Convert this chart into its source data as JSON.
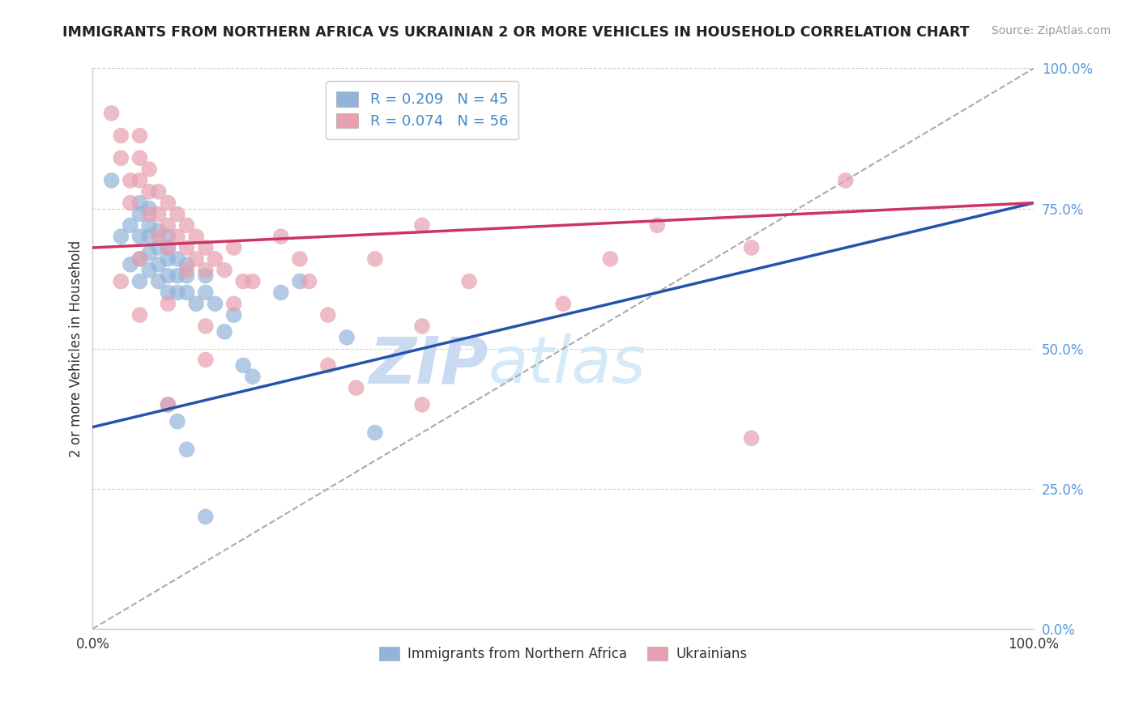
{
  "title": "IMMIGRANTS FROM NORTHERN AFRICA VS UKRAINIAN 2 OR MORE VEHICLES IN HOUSEHOLD CORRELATION CHART",
  "source": "Source: ZipAtlas.com",
  "ylabel": "2 or more Vehicles in Household",
  "ytick_labels": [
    "0.0%",
    "25.0%",
    "50.0%",
    "75.0%",
    "100.0%"
  ],
  "ytick_values": [
    0.0,
    0.25,
    0.5,
    0.75,
    1.0
  ],
  "xtick_labels": [
    "0.0%",
    "100.0%"
  ],
  "xtick_values": [
    0.0,
    1.0
  ],
  "xlim": [
    0.0,
    1.0
  ],
  "ylim": [
    0.0,
    1.0
  ],
  "legend_blue_R": "R = 0.209",
  "legend_blue_N": "N = 45",
  "legend_pink_R": "R = 0.074",
  "legend_pink_N": "N = 56",
  "legend_label_blue": "Immigrants from Northern Africa",
  "legend_label_pink": "Ukrainians",
  "blue_color": "#92b4d9",
  "pink_color": "#e8a0b0",
  "trendline_blue_color": "#2255aa",
  "trendline_pink_color": "#cc3366",
  "trendline_dashed_color": "#aaaaaa",
  "watermark_zip": "ZIP",
  "watermark_atlas": "atlas",
  "blue_x": [
    0.02,
    0.03,
    0.04,
    0.04,
    0.05,
    0.05,
    0.05,
    0.05,
    0.05,
    0.06,
    0.06,
    0.06,
    0.06,
    0.06,
    0.07,
    0.07,
    0.07,
    0.07,
    0.08,
    0.08,
    0.08,
    0.08,
    0.08,
    0.09,
    0.09,
    0.09,
    0.1,
    0.1,
    0.1,
    0.11,
    0.12,
    0.12,
    0.13,
    0.14,
    0.15,
    0.16,
    0.17,
    0.2,
    0.22,
    0.27,
    0.3,
    0.08,
    0.09,
    0.1,
    0.12
  ],
  "blue_y": [
    0.8,
    0.7,
    0.65,
    0.72,
    0.62,
    0.66,
    0.7,
    0.74,
    0.76,
    0.64,
    0.67,
    0.7,
    0.72,
    0.75,
    0.62,
    0.65,
    0.68,
    0.71,
    0.6,
    0.63,
    0.66,
    0.68,
    0.7,
    0.6,
    0.63,
    0.66,
    0.6,
    0.63,
    0.65,
    0.58,
    0.6,
    0.63,
    0.58,
    0.53,
    0.56,
    0.47,
    0.45,
    0.6,
    0.62,
    0.52,
    0.35,
    0.4,
    0.37,
    0.32,
    0.2
  ],
  "pink_x": [
    0.02,
    0.03,
    0.03,
    0.04,
    0.04,
    0.05,
    0.05,
    0.05,
    0.06,
    0.06,
    0.06,
    0.07,
    0.07,
    0.07,
    0.08,
    0.08,
    0.08,
    0.09,
    0.09,
    0.1,
    0.1,
    0.1,
    0.11,
    0.11,
    0.12,
    0.12,
    0.13,
    0.14,
    0.15,
    0.16,
    0.17,
    0.2,
    0.22,
    0.23,
    0.3,
    0.35,
    0.4,
    0.5,
    0.55,
    0.6,
    0.7,
    0.8,
    0.03,
    0.05,
    0.08,
    0.12,
    0.35,
    0.7,
    0.05,
    0.08,
    0.12,
    0.15,
    0.25,
    0.35,
    0.25,
    0.28
  ],
  "pink_y": [
    0.92,
    0.88,
    0.84,
    0.8,
    0.76,
    0.88,
    0.84,
    0.8,
    0.82,
    0.78,
    0.74,
    0.78,
    0.74,
    0.7,
    0.76,
    0.72,
    0.68,
    0.74,
    0.7,
    0.72,
    0.68,
    0.64,
    0.7,
    0.66,
    0.68,
    0.64,
    0.66,
    0.64,
    0.68,
    0.62,
    0.62,
    0.7,
    0.66,
    0.62,
    0.66,
    0.72,
    0.62,
    0.58,
    0.66,
    0.72,
    0.68,
    0.8,
    0.62,
    0.56,
    0.4,
    0.48,
    0.4,
    0.34,
    0.66,
    0.58,
    0.54,
    0.58,
    0.56,
    0.54,
    0.47,
    0.43
  ],
  "blue_trendline_x0": 0.0,
  "blue_trendline_y0": 0.36,
  "blue_trendline_x1": 1.0,
  "blue_trendline_y1": 0.76,
  "pink_trendline_x0": 0.0,
  "pink_trendline_y0": 0.68,
  "pink_trendline_x1": 1.0,
  "pink_trendline_y1": 0.76
}
